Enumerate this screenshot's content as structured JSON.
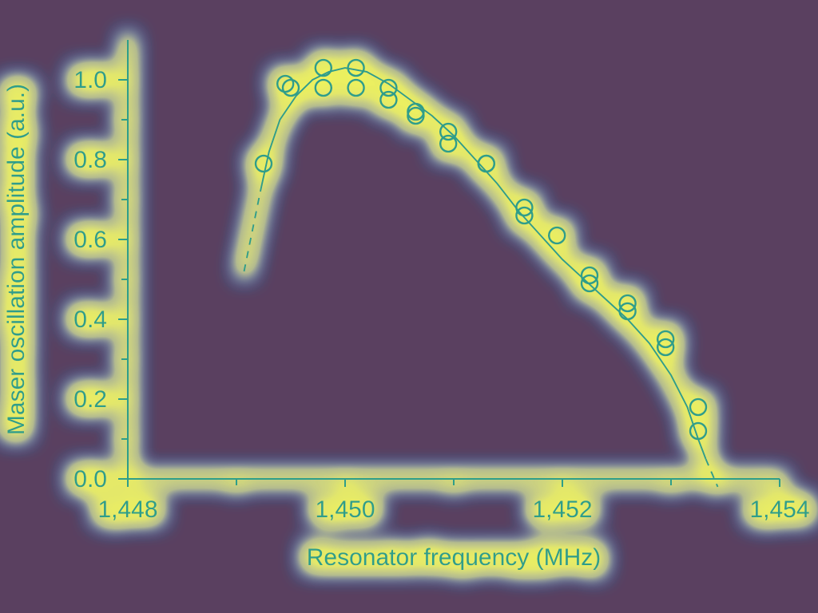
{
  "chart_data": {
    "type": "scatter",
    "xlabel": "Resonator frequency (MHz)",
    "ylabel": "Maser oscillation amplitude (a.u.)",
    "xlim": [
      1448,
      1454
    ],
    "ylim": [
      0,
      1.1
    ],
    "x_ticks": [
      {
        "value": 1448,
        "label": "1,448"
      },
      {
        "value": 1450,
        "label": "1,450"
      },
      {
        "value": 1452,
        "label": "1,452"
      },
      {
        "value": 1454,
        "label": "1,454"
      }
    ],
    "x_minor_ticks": [
      1449,
      1451,
      1453
    ],
    "y_ticks": [
      {
        "value": 0.0,
        "label": "0.0"
      },
      {
        "value": 0.2,
        "label": "0.2"
      },
      {
        "value": 0.4,
        "label": "0.4"
      },
      {
        "value": 0.6,
        "label": "0.6"
      },
      {
        "value": 0.8,
        "label": "0.8"
      },
      {
        "value": 1.0,
        "label": "1.0"
      }
    ],
    "y_minor_ticks": [
      0.1,
      0.3,
      0.5,
      0.7,
      0.9
    ],
    "grid": false,
    "series": [
      {
        "type": "scatter",
        "marker": "open-circle",
        "x": [
          1449.25,
          1449.45,
          1449.5,
          1449.8,
          1449.8,
          1450.1,
          1450.1,
          1450.4,
          1450.4,
          1450.65,
          1450.65,
          1450.95,
          1450.95,
          1451.3,
          1451.3,
          1451.65,
          1451.65,
          1451.95,
          1452.25,
          1452.25,
          1452.6,
          1452.6,
          1452.95,
          1452.95,
          1453.25,
          1453.25
        ],
        "y": [
          0.79,
          0.99,
          0.98,
          1.03,
          0.98,
          1.03,
          0.98,
          0.98,
          0.95,
          0.92,
          0.91,
          0.87,
          0.84,
          0.79,
          0.79,
          0.68,
          0.66,
          0.61,
          0.51,
          0.49,
          0.44,
          0.42,
          0.35,
          0.33,
          0.18,
          0.12
        ]
      },
      {
        "type": "line",
        "style": "solid",
        "x": [
          1449.22,
          1449.3,
          1449.4,
          1449.55,
          1449.7,
          1449.85,
          1450.0,
          1450.2,
          1450.4,
          1450.6,
          1450.8,
          1451.0,
          1451.2,
          1451.4,
          1451.6,
          1451.8,
          1452.0,
          1452.2,
          1452.4,
          1452.6,
          1452.8,
          1453.0,
          1453.15,
          1453.25,
          1453.32
        ],
        "y": [
          0.72,
          0.82,
          0.9,
          0.96,
          1.0,
          1.02,
          1.03,
          1.02,
          0.99,
          0.95,
          0.91,
          0.86,
          0.8,
          0.74,
          0.67,
          0.61,
          0.55,
          0.5,
          0.45,
          0.4,
          0.34,
          0.26,
          0.18,
          0.1,
          0.05
        ]
      },
      {
        "type": "line",
        "style": "dashed",
        "x": [
          1449.07,
          1449.22
        ],
        "y": [
          0.52,
          0.72
        ]
      },
      {
        "type": "line",
        "style": "dashed",
        "x": [
          1453.32,
          1453.43
        ],
        "y": [
          0.05,
          -0.02
        ]
      }
    ]
  },
  "colors": {
    "background": "#5a4060",
    "foreground": "#2f9e8a",
    "heat_low": "#4fb0f0",
    "heat_mid": "#38d8b0",
    "heat_high": "#d8f040"
  }
}
